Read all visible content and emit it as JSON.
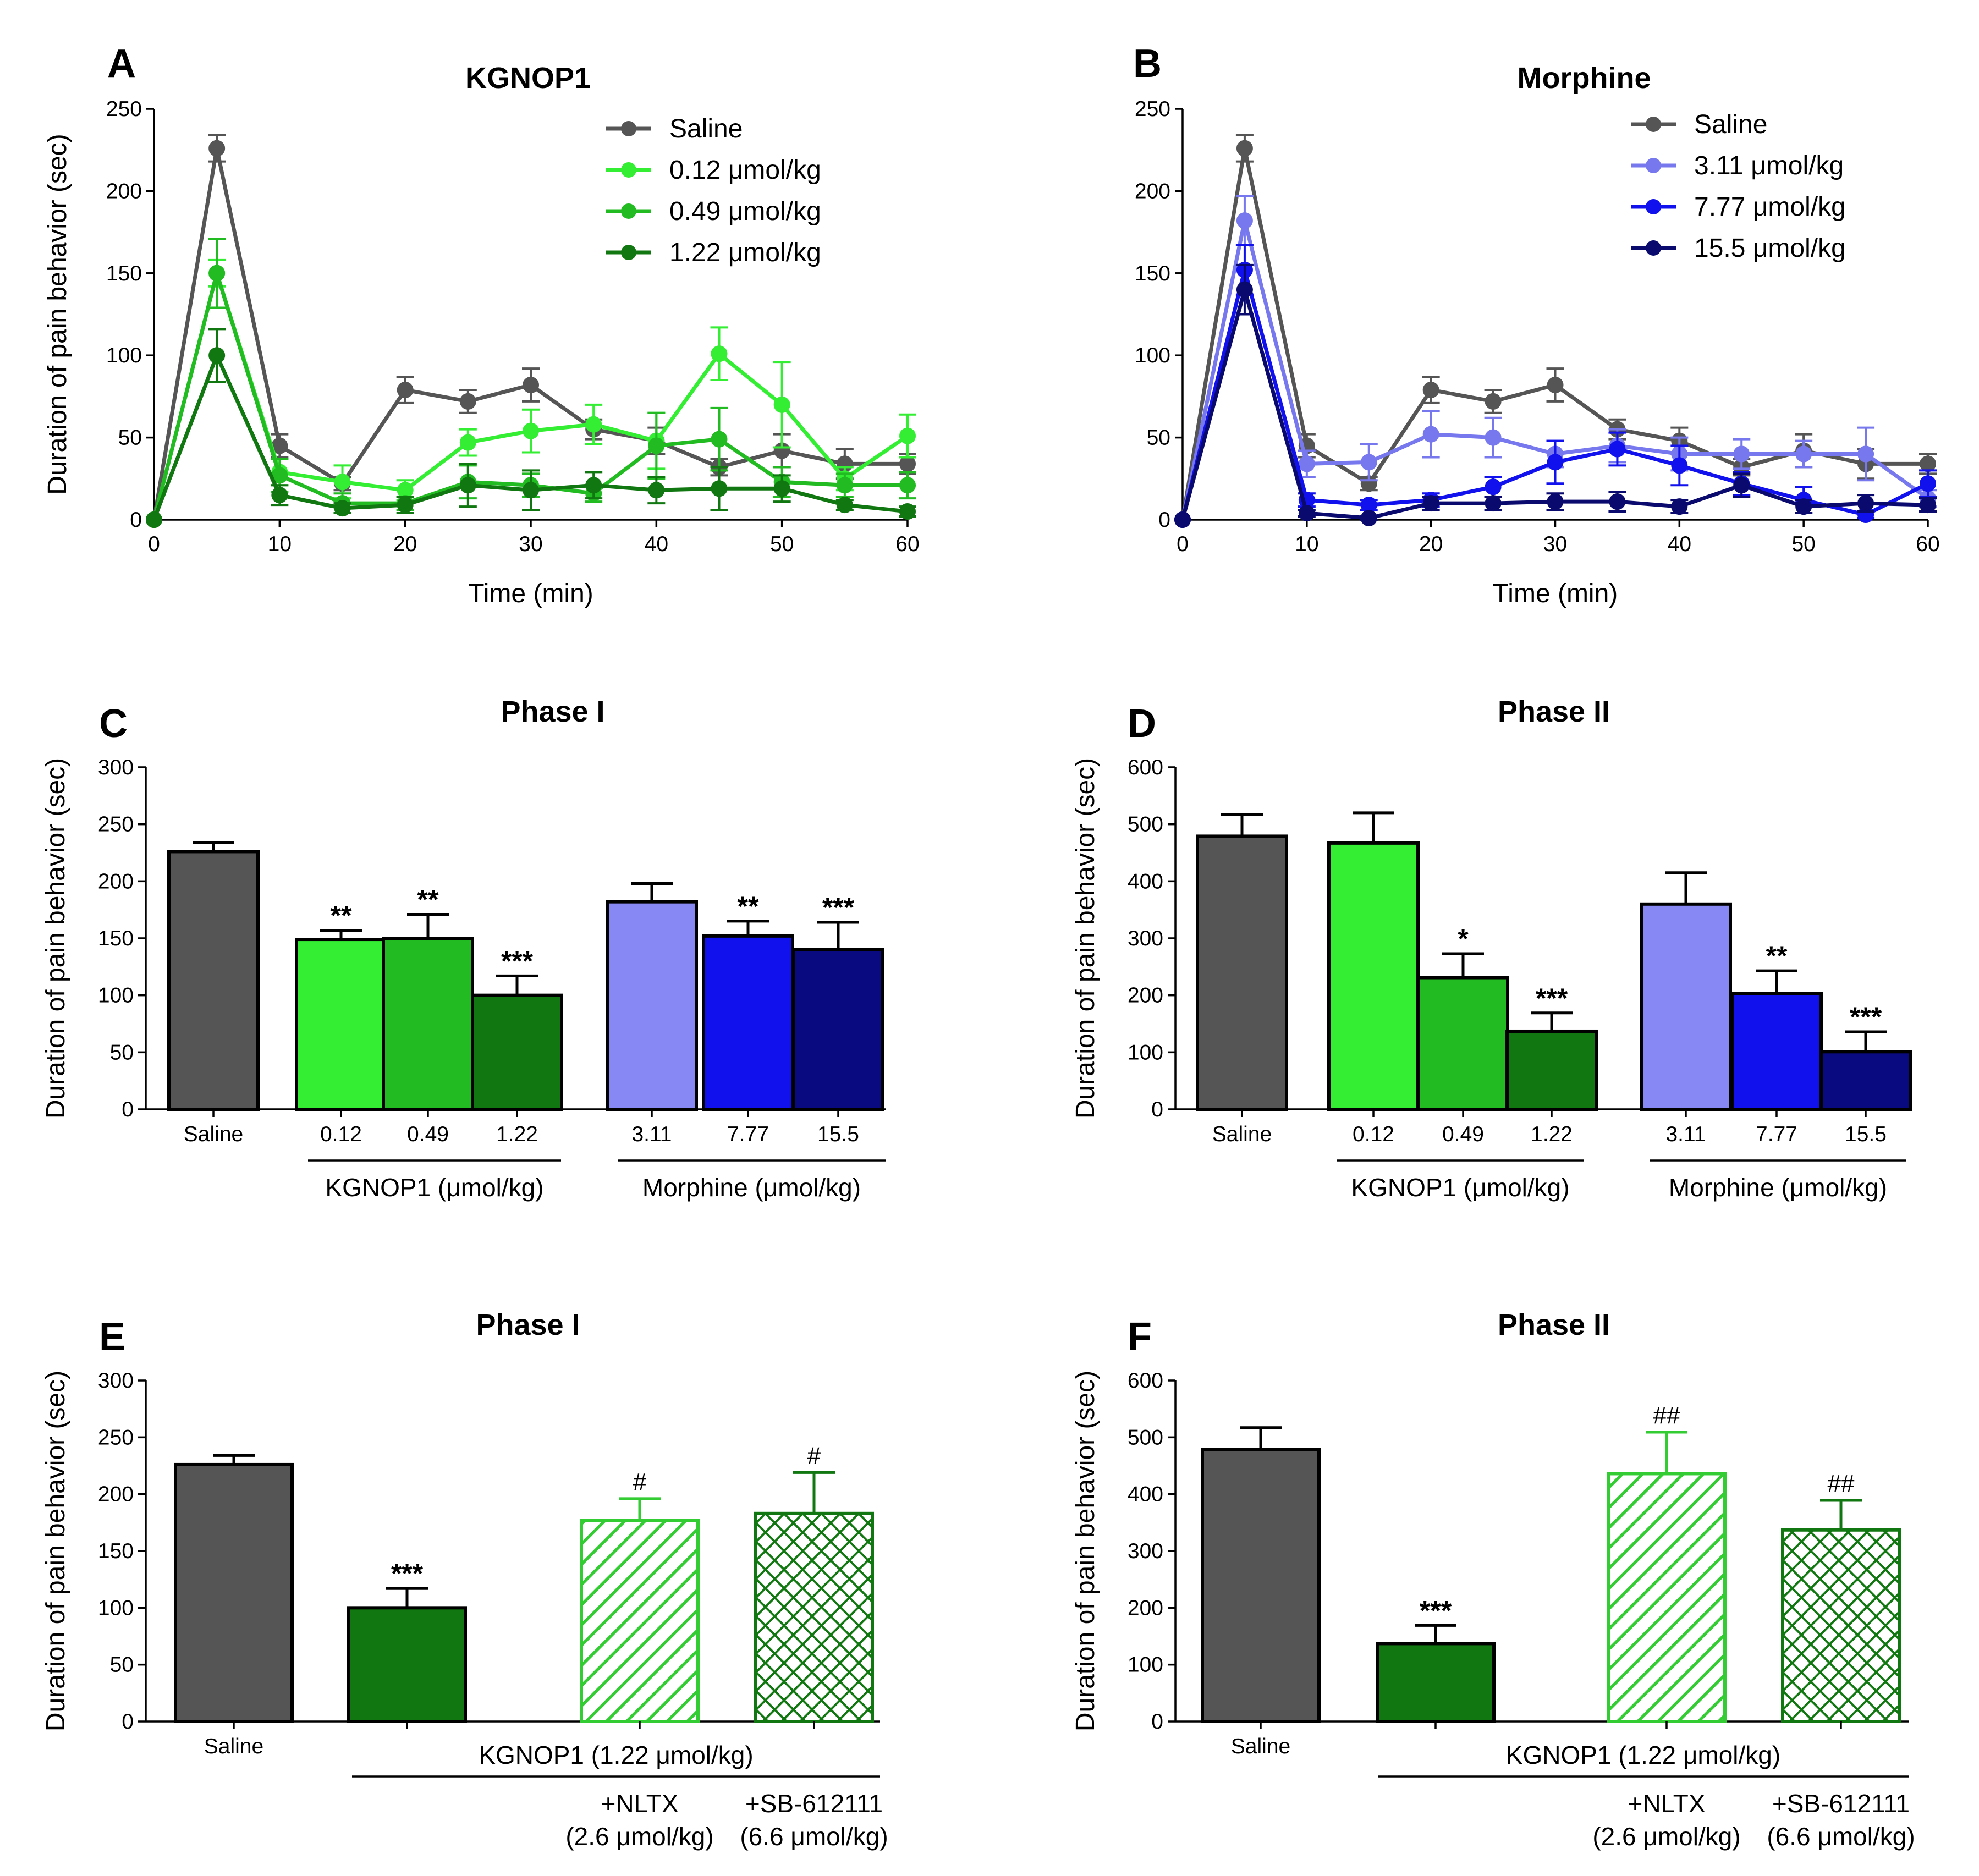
{
  "chart_data": [
    {
      "panel": "A",
      "type": "line",
      "title": "KGNOP1",
      "xlabel": "Time (min)",
      "ylabel": "Duration of pain behavior (sec)",
      "xlim": [
        0,
        60
      ],
      "ylim": [
        0,
        250
      ],
      "xticks": [
        0,
        10,
        20,
        30,
        40,
        50,
        60
      ],
      "yticks": [
        0,
        50,
        100,
        150,
        200,
        250
      ],
      "x": [
        0,
        5,
        10,
        15,
        20,
        25,
        30,
        35,
        40,
        45,
        50,
        55,
        60
      ],
      "legend_position": "top-right",
      "series": [
        {
          "name": "Saline",
          "color": "#555555",
          "values": [
            0,
            226,
            45,
            22,
            79,
            72,
            82,
            55,
            48,
            32,
            42,
            34,
            34
          ],
          "errors": [
            0,
            8,
            7,
            4,
            8,
            7,
            10,
            6,
            8,
            5,
            10,
            9,
            6
          ]
        },
        {
          "name": "0.12 μmol/kg",
          "color": "#33ee33",
          "values": [
            0,
            150,
            29,
            23,
            18,
            47,
            54,
            58,
            48,
            101,
            70,
            25,
            51
          ],
          "errors": [
            0,
            8,
            8,
            10,
            6,
            8,
            13,
            12,
            17,
            16,
            26,
            7,
            13
          ]
        },
        {
          "name": "0.49 μmol/kg",
          "color": "#22bb22",
          "values": [
            0,
            150,
            27,
            10,
            10,
            23,
            21,
            16,
            45,
            49,
            23,
            21,
            21
          ],
          "errors": [
            0,
            21,
            10,
            6,
            4,
            10,
            7,
            5,
            20,
            19,
            9,
            7,
            8
          ]
        },
        {
          "name": "1.22 μmol/kg",
          "color": "#117711",
          "values": [
            0,
            100,
            15,
            7,
            9,
            21,
            18,
            21,
            18,
            19,
            19,
            9,
            5
          ],
          "errors": [
            0,
            16,
            6,
            3,
            5,
            13,
            12,
            8,
            8,
            13,
            8,
            3,
            3
          ]
        }
      ]
    },
    {
      "panel": "B",
      "type": "line",
      "title": "Morphine",
      "xlabel": "Time (min)",
      "ylabel": "Duration of pain behavior (sec)",
      "xlim": [
        0,
        60
      ],
      "ylim": [
        0,
        250
      ],
      "xticks": [
        0,
        10,
        20,
        30,
        40,
        50,
        60
      ],
      "yticks": [
        0,
        50,
        100,
        150,
        200,
        250
      ],
      "x": [
        0,
        5,
        10,
        15,
        20,
        25,
        30,
        35,
        40,
        45,
        50,
        55,
        60
      ],
      "legend_position": "top-right",
      "series": [
        {
          "name": "Saline",
          "color": "#555555",
          "values": [
            0,
            226,
            45,
            22,
            79,
            72,
            82,
            55,
            48,
            32,
            42,
            34,
            34
          ],
          "errors": [
            0,
            8,
            7,
            4,
            8,
            7,
            10,
            6,
            8,
            5,
            10,
            9,
            6
          ]
        },
        {
          "name": "3.11 μmol/kg",
          "color": "#7777ee",
          "values": [
            0,
            182,
            34,
            35,
            52,
            50,
            40,
            45,
            40,
            40,
            40,
            40,
            13
          ],
          "errors": [
            0,
            15,
            8,
            11,
            14,
            12,
            8,
            10,
            10,
            9,
            8,
            16,
            5
          ]
        },
        {
          "name": "7.77 μmol/kg",
          "color": "#1111ee",
          "values": [
            0,
            152,
            12,
            9,
            12,
            20,
            35,
            43,
            33,
            22,
            12,
            3,
            22
          ],
          "errors": [
            0,
            15,
            4,
            3,
            4,
            6,
            13,
            10,
            12,
            7,
            8,
            2,
            8
          ]
        },
        {
          "name": "15.5 μmol/kg",
          "color": "#0a0a6e",
          "values": [
            0,
            140,
            4,
            1,
            10,
            10,
            11,
            11,
            8,
            21,
            8,
            10,
            9
          ],
          "errors": [
            0,
            15,
            2,
            1,
            4,
            4,
            5,
            6,
            4,
            7,
            4,
            5,
            4
          ]
        }
      ]
    },
    {
      "panel": "C",
      "type": "bar",
      "title": "Phase I",
      "ylabel": "Duration of pain behavior (sec)",
      "ylim": [
        0,
        300
      ],
      "yticks": [
        0,
        50,
        100,
        150,
        200,
        250,
        300
      ],
      "categories": [
        "Saline",
        "0.12",
        "0.49",
        "1.22",
        "3.11",
        "7.77",
        "15.5"
      ],
      "values": [
        226,
        149,
        150,
        100,
        182,
        152,
        140
      ],
      "errors": [
        8,
        8,
        21,
        17,
        16,
        13,
        24
      ],
      "colors": [
        "#555555",
        "#33ee33",
        "#22bb22",
        "#117711",
        "#8888f5",
        "#1111ee",
        "#0a0a80"
      ],
      "patterns": [
        "solid",
        "solid",
        "solid",
        "solid",
        "solid",
        "solid",
        "solid"
      ],
      "significance": [
        "",
        "**",
        "**",
        "***",
        "",
        "**",
        "***"
      ],
      "group_labels": [
        "KGNOP1 (μmol/kg)",
        "Morphine (μmol/kg)"
      ]
    },
    {
      "panel": "D",
      "type": "bar",
      "title": "Phase II",
      "ylabel": "Duration of pain behavior (sec)",
      "ylim": [
        0,
        600
      ],
      "yticks": [
        0,
        100,
        200,
        300,
        400,
        500,
        600
      ],
      "categories": [
        "Saline",
        "0.12",
        "0.49",
        "1.22",
        "3.11",
        "7.77",
        "15.5"
      ],
      "values": [
        479,
        467,
        231,
        137,
        360,
        203,
        101
      ],
      "errors": [
        38,
        53,
        42,
        32,
        55,
        40,
        35
      ],
      "colors": [
        "#555555",
        "#33ee33",
        "#22bb22",
        "#117711",
        "#8888f5",
        "#1111ee",
        "#0a0a80"
      ],
      "patterns": [
        "solid",
        "solid",
        "solid",
        "solid",
        "solid",
        "solid",
        "solid"
      ],
      "significance": [
        "",
        "",
        "*",
        "***",
        "",
        "**",
        "***"
      ],
      "group_labels": [
        "KGNOP1 (μmol/kg)",
        "Morphine (μmol/kg)"
      ]
    },
    {
      "panel": "E",
      "type": "bar",
      "title": "Phase I",
      "ylabel": "Duration of pain behavior (sec)",
      "ylim": [
        0,
        300
      ],
      "yticks": [
        0,
        50,
        100,
        150,
        200,
        250,
        300
      ],
      "categories": [
        "Saline",
        "",
        "+NLTX\n(2.6 μmol/kg)",
        "+SB-612111\n(6.6 μmol/kg)"
      ],
      "values": [
        226,
        100,
        177,
        183
      ],
      "errors": [
        8,
        17,
        19,
        36
      ],
      "colors": [
        "#555555",
        "#117711",
        "#33cc33",
        "#117711"
      ],
      "patterns": [
        "solid",
        "solid",
        "diag",
        "cross"
      ],
      "significance": [
        "",
        "***",
        "#",
        "#"
      ],
      "group_labels": [
        "KGNOP1 (1.22 μmol/kg)"
      ]
    },
    {
      "panel": "F",
      "type": "bar",
      "title": "Phase II",
      "ylabel": "Duration of pain behavior (sec)",
      "ylim": [
        0,
        600
      ],
      "yticks": [
        0,
        100,
        200,
        300,
        400,
        500,
        600
      ],
      "categories": [
        "Saline",
        "",
        "+NLTX\n(2.6 μmol/kg)",
        "+SB-612111\n(6.6 μmol/kg)"
      ],
      "values": [
        479,
        137,
        436,
        337
      ],
      "errors": [
        38,
        32,
        73,
        52
      ],
      "colors": [
        "#555555",
        "#117711",
        "#33cc33",
        "#117711"
      ],
      "patterns": [
        "solid",
        "solid",
        "diag",
        "cross"
      ],
      "significance": [
        "",
        "***",
        "##",
        "##"
      ],
      "group_labels": [
        "KGNOP1 (1.22 μmol/kg)"
      ]
    }
  ]
}
